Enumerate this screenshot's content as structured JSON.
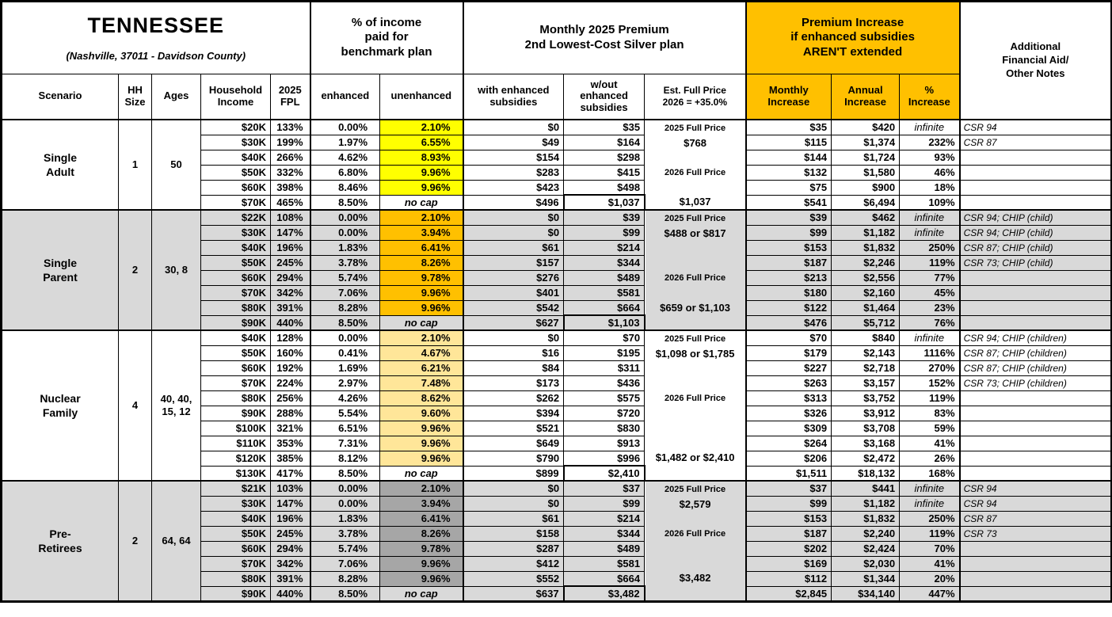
{
  "title": {
    "state": "TENNESSEE",
    "location": "(Nashville, 37011 - Davidson County)"
  },
  "header_groups": {
    "pct_income": "% of income\npaid for\nbenchmark plan",
    "premium": "Monthly 2025 Premium\n2nd Lowest-Cost Silver plan",
    "increase": "Premium Increase\nif enhanced subsidies\nAREN'T extended",
    "notes": "Additional\nFinancial Aid/\nOther Notes"
  },
  "columns": {
    "scenario": "Scenario",
    "hh_size": "HH\nSize",
    "ages": "Ages",
    "income": "Household\nIncome",
    "fpl": "2025\nFPL",
    "enhanced": "enhanced",
    "unenhanced": "unenhanced",
    "with_sub": "with enhanced\nsubsidies",
    "without_sub": "w/out\nenhanced\nsubsidies",
    "full_price": "Est. Full Price\n2026 = +35.0%",
    "monthly_inc": "Monthly\nIncrease",
    "annual_inc": "Annual\nIncrease",
    "pct_inc": "%\nIncrease"
  },
  "colors": {
    "header_accent": "#FFC000",
    "section_gray": "#D9D9D9",
    "highlight_yellow": "#FFFF00",
    "highlight_orange": "#FFC000",
    "highlight_tan": "#FFE699",
    "highlight_gray": "#A6A6A6",
    "highlight_cream": "#FFF2CC"
  },
  "sections": [
    {
      "name": "Single\nAdult",
      "hh_size": "1",
      "ages": "50",
      "row_bg": "#FFFFFF",
      "unenhanced_highlight": "#FFFF00",
      "full_price_notes": [
        {
          "row": 0,
          "text": "2025 Full Price",
          "small": true
        },
        {
          "row": 1,
          "text": "$768",
          "small": false
        },
        {
          "row": 3,
          "text": "2026 Full Price",
          "small": true
        },
        {
          "row": 5,
          "text": "$1,037",
          "small": false
        }
      ],
      "rows": [
        [
          "$20K",
          "133%",
          "0.00%",
          "2.10%",
          "$0",
          "$35",
          "$35",
          "$420",
          "infinite",
          "CSR 94"
        ],
        [
          "$30K",
          "199%",
          "1.97%",
          "6.55%",
          "$49",
          "$164",
          "$115",
          "$1,374",
          "232%",
          "CSR 87"
        ],
        [
          "$40K",
          "266%",
          "4.62%",
          "8.93%",
          "$154",
          "$298",
          "$144",
          "$1,724",
          "93%",
          ""
        ],
        [
          "$50K",
          "332%",
          "6.80%",
          "9.96%",
          "$283",
          "$415",
          "$132",
          "$1,580",
          "46%",
          ""
        ],
        [
          "$60K",
          "398%",
          "8.46%",
          "9.96%",
          "$423",
          "$498",
          "$75",
          "$900",
          "18%",
          ""
        ],
        [
          "$70K",
          "465%",
          "8.50%",
          "no cap",
          "$496",
          "$1,037",
          "$541",
          "$6,494",
          "109%",
          ""
        ]
      ]
    },
    {
      "name": "Single\nParent",
      "hh_size": "2",
      "ages": "30, 8",
      "row_bg": "#D9D9D9",
      "unenhanced_highlight": "#FFC000",
      "full_price_notes": [
        {
          "row": 0,
          "text": "2025 Full Price",
          "small": true
        },
        {
          "row": 1,
          "text": "$488 or $817",
          "small": false
        },
        {
          "row": 4,
          "text": "2026 Full Price",
          "small": true
        },
        {
          "row": 6,
          "text": "$659 or $1,103",
          "small": false
        }
      ],
      "rows": [
        [
          "$22K",
          "108%",
          "0.00%",
          "2.10%",
          "$0",
          "$39",
          "$39",
          "$462",
          "infinite",
          "CSR 94; CHIP (child)"
        ],
        [
          "$30K",
          "147%",
          "0.00%",
          "3.94%",
          "$0",
          "$99",
          "$99",
          "$1,182",
          "infinite",
          "CSR 94; CHIP (child)"
        ],
        [
          "$40K",
          "196%",
          "1.83%",
          "6.41%",
          "$61",
          "$214",
          "$153",
          "$1,832",
          "250%",
          "CSR 87; CHIP (child)"
        ],
        [
          "$50K",
          "245%",
          "3.78%",
          "8.26%",
          "$157",
          "$344",
          "$187",
          "$2,246",
          "119%",
          "CSR 73; CHIP (child)"
        ],
        [
          "$60K",
          "294%",
          "5.74%",
          "9.78%",
          "$276",
          "$489",
          "$213",
          "$2,556",
          "77%",
          ""
        ],
        [
          "$70K",
          "342%",
          "7.06%",
          "9.96%",
          "$401",
          "$581",
          "$180",
          "$2,160",
          "45%",
          ""
        ],
        [
          "$80K",
          "391%",
          "8.28%",
          "9.96%",
          "$542",
          "$664",
          "$122",
          "$1,464",
          "23%",
          ""
        ],
        [
          "$90K",
          "440%",
          "8.50%",
          "no cap",
          "$627",
          "$1,103",
          "$476",
          "$5,712",
          "76%",
          ""
        ]
      ]
    },
    {
      "name": "Nuclear\nFamily",
      "hh_size": "4",
      "ages": "40, 40,\n15, 12",
      "row_bg": "#FFFFFF",
      "unenhanced_highlight": "#FFE699",
      "full_price_notes": [
        {
          "row": 0,
          "text": "2025 Full Price",
          "small": true
        },
        {
          "row": 1,
          "text": "$1,098 or $1,785",
          "small": false
        },
        {
          "row": 4,
          "text": "2026 Full Price",
          "small": true
        },
        {
          "row": 8,
          "text": "$1,482 or $2,410",
          "small": false
        }
      ],
      "rows": [
        [
          "$40K",
          "128%",
          "0.00%",
          "2.10%",
          "$0",
          "$70",
          "$70",
          "$840",
          "infinite",
          "CSR 94; CHIP (children)"
        ],
        [
          "$50K",
          "160%",
          "0.41%",
          "4.67%",
          "$16",
          "$195",
          "$179",
          "$2,143",
          "1116%",
          "CSR 87; CHIP (children)"
        ],
        [
          "$60K",
          "192%",
          "1.69%",
          "6.21%",
          "$84",
          "$311",
          "$227",
          "$2,718",
          "270%",
          "CSR 87; CHIP (children)"
        ],
        [
          "$70K",
          "224%",
          "2.97%",
          "7.48%",
          "$173",
          "$436",
          "$263",
          "$3,157",
          "152%",
          "CSR 73; CHIP (children)"
        ],
        [
          "$80K",
          "256%",
          "4.26%",
          "8.62%",
          "$262",
          "$575",
          "$313",
          "$3,752",
          "119%",
          ""
        ],
        [
          "$90K",
          "288%",
          "5.54%",
          "9.60%",
          "$394",
          "$720",
          "$326",
          "$3,912",
          "83%",
          ""
        ],
        [
          "$100K",
          "321%",
          "6.51%",
          "9.96%",
          "$521",
          "$830",
          "$309",
          "$3,708",
          "59%",
          ""
        ],
        [
          "$110K",
          "353%",
          "7.31%",
          "9.96%",
          "$649",
          "$913",
          "$264",
          "$3,168",
          "41%",
          ""
        ],
        [
          "$120K",
          "385%",
          "8.12%",
          "9.96%",
          "$790",
          "$996",
          "$206",
          "$2,472",
          "26%",
          ""
        ],
        [
          "$130K",
          "417%",
          "8.50%",
          "no cap",
          "$899",
          "$2,410",
          "$1,511",
          "$18,132",
          "168%",
          ""
        ]
      ]
    },
    {
      "name": "Pre-\nRetirees",
      "hh_size": "2",
      "ages": "64, 64",
      "row_bg": "#D9D9D9",
      "unenhanced_highlight": "#A6A6A6",
      "full_price_notes": [
        {
          "row": 0,
          "text": "2025 Full Price",
          "small": true
        },
        {
          "row": 1,
          "text": "$2,579",
          "small": false
        },
        {
          "row": 3,
          "text": "2026 Full Price",
          "small": true
        },
        {
          "row": 6,
          "text": "$3,482",
          "small": false
        }
      ],
      "rows": [
        [
          "$21K",
          "103%",
          "0.00%",
          "2.10%",
          "$0",
          "$37",
          "$37",
          "$441",
          "infinite",
          "CSR 94"
        ],
        [
          "$30K",
          "147%",
          "0.00%",
          "3.94%",
          "$0",
          "$99",
          "$99",
          "$1,182",
          "infinite",
          "CSR 94"
        ],
        [
          "$40K",
          "196%",
          "1.83%",
          "6.41%",
          "$61",
          "$214",
          "$153",
          "$1,832",
          "250%",
          "CSR 87"
        ],
        [
          "$50K",
          "245%",
          "3.78%",
          "8.26%",
          "$158",
          "$344",
          "$187",
          "$2,240",
          "119%",
          "CSR 73"
        ],
        [
          "$60K",
          "294%",
          "5.74%",
          "9.78%",
          "$287",
          "$489",
          "$202",
          "$2,424",
          "70%",
          ""
        ],
        [
          "$70K",
          "342%",
          "7.06%",
          "9.96%",
          "$412",
          "$581",
          "$169",
          "$2,030",
          "41%",
          ""
        ],
        [
          "$80K",
          "391%",
          "8.28%",
          "9.96%",
          "$552",
          "$664",
          "$112",
          "$1,344",
          "20%",
          ""
        ],
        [
          "$90K",
          "440%",
          "8.50%",
          "no cap",
          "$637",
          "$3,482",
          "$2,845",
          "$34,140",
          "447%",
          ""
        ]
      ]
    }
  ]
}
